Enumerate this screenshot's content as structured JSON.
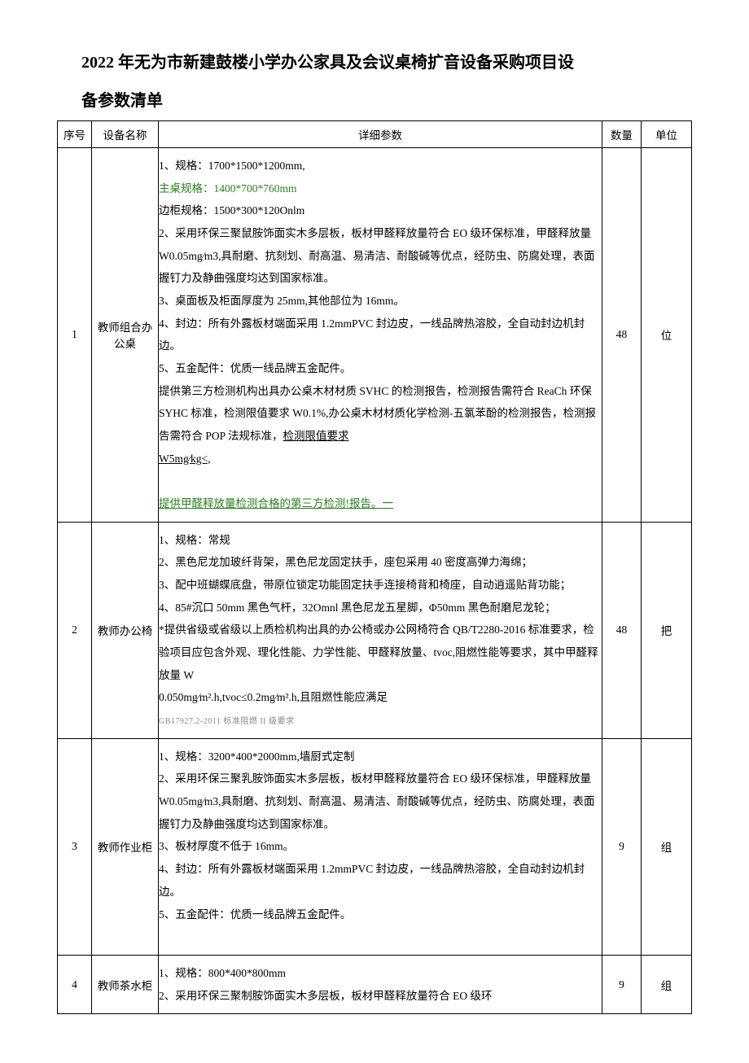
{
  "title_line1": "2022 年无为市新建鼓楼小学办公家具及会议桌椅扩音设备采购项目设",
  "title_line2": "备参数清单",
  "headers": {
    "seq": "序号",
    "name": "设备名称",
    "detail": "详细参数",
    "qty": "数量",
    "unit": "单位"
  },
  "rows": [
    {
      "seq": "1",
      "name": "教师组合办公桌",
      "qty": "48",
      "unit": "位",
      "details": [
        {
          "text": "1、规格：1700*1500*1200mm,"
        },
        {
          "text": "主桌规格：1400*700*760mm",
          "class": "green"
        },
        {
          "text": "边柜规格：1500*300*120Onlm"
        },
        {
          "text": "2、采用环保三聚鼠胺饰面实木多层板，板材甲醛释放量符合 EO 级环保标准，甲醛释放量 W0.05mg∕m3,具耐磨、抗刻划、耐高温、易清洁、耐酸碱等优点，经防虫、防腐处理，表面握钉力及静曲强度均达到国家标准。"
        },
        {
          "text": "3、桌面板及柜面厚度为 25mm,其他部位为 16mm。"
        },
        {
          "text": "4、封边：所有外露板材端面采用 1.2mmPVC 封边皮，一线品牌热溶胶，全自动封边机封边。"
        },
        {
          "text": "5、五金配件：优质一线品牌五金配件。"
        },
        {
          "text": "提供第三方检测机构出具办公桌木材材质 SVHC 的检测报告，检测报告需符合 ReaCh 环保 SYHC 标准，检测限值要求 W0.1%,办公桌木材材质化学检测-五氯苯酚的检测报告，检测报告需符合 POP 法规标准，<span class=\"underline\">检测限值要求</span>"
        },
        {
          "text": "<span class=\"underline\">W5mg∕kg<,</span>"
        },
        {
          "text": "&nbsp;"
        },
        {
          "text": "提供甲醛释放量检测合格的第三方检测!报告。一",
          "class": "green underline"
        }
      ]
    },
    {
      "seq": "2",
      "name": "教师办公椅",
      "qty": "48",
      "unit": "把",
      "details": [
        {
          "text": "1、规格：常规"
        },
        {
          "text": "2、黑色尼龙加玻纤背架，黑色尼龙固定扶手，座包采用 40 密度高弹力海绵；"
        },
        {
          "text": "3、配中班蝴蝶底盘，带原位锁定功能固定扶手连接椅背和椅座，自动逍遥贴背功能；"
        },
        {
          "text": "4、85#沉口 50mm 黑色气杆，32Omnl 黑色尼龙五星脚，Φ50mm 黑色耐磨尼龙轮；"
        },
        {
          "text": "*提供省级或省级以上质检机构出具的办公椅或办公网椅符合 QB/T2280-2016 标准要求，检验项目应包含外观、理化性能、力学性能、甲醛释放量、tvoc,阻燃性能等要求，其中甲醛释放量 W"
        },
        {
          "text": "0.050mg∕m².h,tvoc≤0.2mg∕m².h,且阻燃性能应满足"
        },
        {
          "text": "<span class=\"small-gray\">GB17927.2-2011 标准阻燃 II 级要求</span>"
        }
      ]
    },
    {
      "seq": "3",
      "name": "教师作业柜",
      "qty": "9",
      "unit": "组",
      "details": [
        {
          "text": "1、规格：3200*400*2000mm,墙厨式定制"
        },
        {
          "text": "2、采用环保三聚乳胺饰面实木多层板，板材甲醛释放量符合 EO 级环保标准，甲醛释放量 W0.05mg∕m3,具耐磨、抗刻划、耐高温、易清洁、耐酸碱等优点，经防虫、防腐处理，表面握钉力及静曲强度均达到国家标准。"
        },
        {
          "text": "3、板材厚度不低于 16mm。"
        },
        {
          "text": "4、封边：所有外露板材端面采用 1.2mmPVC 封边皮，一线品牌热溶胶，全自动封边机封边。"
        },
        {
          "text": "5、五金配件：优质一线品牌五金配件。"
        },
        {
          "text": "&nbsp;"
        }
      ]
    },
    {
      "seq": "4",
      "name": "教师茶水柜",
      "qty": "9",
      "unit": "组",
      "details": [
        {
          "text": "1、规格：800*400*800mm"
        },
        {
          "text": "2、采用环保三聚制胺饰面实木多层板，板材甲醛释放量符合 EO 级环"
        }
      ]
    }
  ]
}
